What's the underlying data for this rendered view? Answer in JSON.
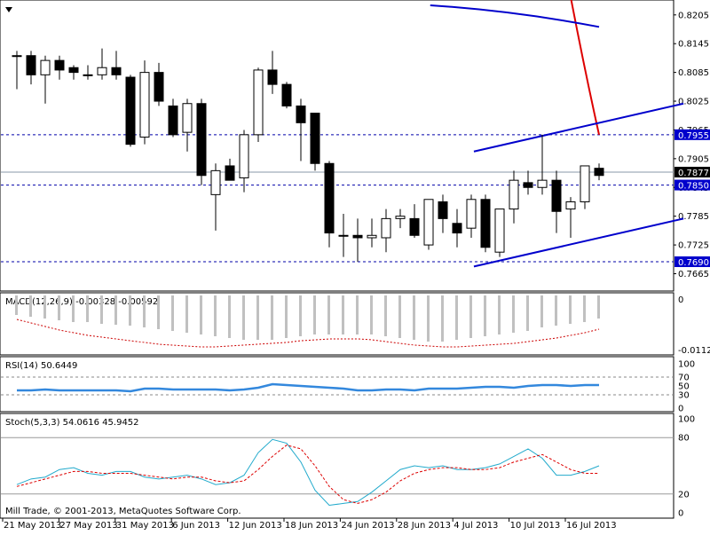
{
  "price_axis_labels": [
    "0.8205",
    "0.8145",
    "0.8085",
    "0.8025",
    "0.7965",
    "0.7905",
    "0.7845",
    "0.7785",
    "0.7725",
    "0.7665"
  ],
  "price_hlines": [
    {
      "label": "0.7955",
      "value": 0.7955
    },
    {
      "label": "0.7850",
      "value": 0.785
    },
    {
      "label": "0.7690",
      "value": 0.769
    }
  ],
  "current_price": {
    "label": "0.7877",
    "value": 0.7877
  },
  "macd": {
    "label": "MACD(12,26,9) -0.00328 -0.00592",
    "axis_top": "0",
    "axis_bottom": "-0.01128"
  },
  "rsi": {
    "label": "RSI(14) 50.6449",
    "levels": [
      "100",
      "70",
      "50",
      "30",
      "0"
    ]
  },
  "stoch": {
    "label": "Stoch(5,3,3) 54.0616 45.9452",
    "levels": [
      "100",
      "80",
      "20",
      "0"
    ]
  },
  "copyright": "Mill Trade, © 2001-2013, MetaQuotes Software Corp.",
  "x_labels": [
    "21 May 2013",
    "27 May 2013",
    "31 May 2013",
    "6 Jun 2013",
    "12 Jun 2013",
    "18 Jun 2013",
    "24 Jun 2013",
    "28 Jun 2013",
    "4 Jul 2013",
    "10 Jul 2013",
    "16 Jul 2013"
  ],
  "chart_data": {
    "type": "candlestick",
    "ylim": [
      0.764,
      0.8225
    ],
    "candles": [
      {
        "o": 0.812,
        "h": 0.813,
        "l": 0.805,
        "c": 0.812
      },
      {
        "o": 0.812,
        "h": 0.813,
        "l": 0.806,
        "c": 0.808
      },
      {
        "o": 0.808,
        "h": 0.812,
        "l": 0.802,
        "c": 0.811
      },
      {
        "o": 0.811,
        "h": 0.812,
        "l": 0.807,
        "c": 0.809
      },
      {
        "o": 0.8095,
        "h": 0.81,
        "l": 0.807,
        "c": 0.8085
      },
      {
        "o": 0.808,
        "h": 0.81,
        "l": 0.807,
        "c": 0.808
      },
      {
        "o": 0.808,
        "h": 0.8135,
        "l": 0.807,
        "c": 0.8095
      },
      {
        "o": 0.8095,
        "h": 0.813,
        "l": 0.807,
        "c": 0.808
      },
      {
        "o": 0.8075,
        "h": 0.808,
        "l": 0.793,
        "c": 0.7935
      },
      {
        "o": 0.795,
        "h": 0.811,
        "l": 0.7935,
        "c": 0.8085
      },
      {
        "o": 0.8085,
        "h": 0.8105,
        "l": 0.8015,
        "c": 0.8025
      },
      {
        "o": 0.8015,
        "h": 0.803,
        "l": 0.795,
        "c": 0.7955
      },
      {
        "o": 0.796,
        "h": 0.803,
        "l": 0.792,
        "c": 0.802
      },
      {
        "o": 0.802,
        "h": 0.803,
        "l": 0.785,
        "c": 0.787
      },
      {
        "o": 0.783,
        "h": 0.7895,
        "l": 0.7755,
        "c": 0.788
      },
      {
        "o": 0.789,
        "h": 0.7905,
        "l": 0.786,
        "c": 0.786
      },
      {
        "o": 0.7865,
        "h": 0.7965,
        "l": 0.7835,
        "c": 0.7955
      },
      {
        "o": 0.7955,
        "h": 0.8095,
        "l": 0.794,
        "c": 0.809
      },
      {
        "o": 0.809,
        "h": 0.813,
        "l": 0.804,
        "c": 0.806
      },
      {
        "o": 0.806,
        "h": 0.8065,
        "l": 0.801,
        "c": 0.8015
      },
      {
        "o": 0.8015,
        "h": 0.803,
        "l": 0.79,
        "c": 0.798
      },
      {
        "o": 0.8,
        "h": 0.8,
        "l": 0.788,
        "c": 0.7895
      },
      {
        "o": 0.7895,
        "h": 0.79,
        "l": 0.772,
        "c": 0.775
      },
      {
        "o": 0.7745,
        "h": 0.779,
        "l": 0.77,
        "c": 0.7745
      },
      {
        "o": 0.7745,
        "h": 0.778,
        "l": 0.769,
        "c": 0.774
      },
      {
        "o": 0.774,
        "h": 0.778,
        "l": 0.772,
        "c": 0.7745
      },
      {
        "o": 0.774,
        "h": 0.78,
        "l": 0.771,
        "c": 0.778
      },
      {
        "o": 0.778,
        "h": 0.78,
        "l": 0.776,
        "c": 0.7785
      },
      {
        "o": 0.778,
        "h": 0.781,
        "l": 0.774,
        "c": 0.7745
      },
      {
        "o": 0.7725,
        "h": 0.782,
        "l": 0.7715,
        "c": 0.782
      },
      {
        "o": 0.7815,
        "h": 0.783,
        "l": 0.775,
        "c": 0.778
      },
      {
        "o": 0.777,
        "h": 0.78,
        "l": 0.772,
        "c": 0.775
      },
      {
        "o": 0.776,
        "h": 0.783,
        "l": 0.774,
        "c": 0.782
      },
      {
        "o": 0.782,
        "h": 0.783,
        "l": 0.771,
        "c": 0.772
      },
      {
        "o": 0.771,
        "h": 0.78,
        "l": 0.77,
        "c": 0.78
      },
      {
        "o": 0.78,
        "h": 0.788,
        "l": 0.777,
        "c": 0.786
      },
      {
        "o": 0.7855,
        "h": 0.788,
        "l": 0.783,
        "c": 0.7845
      },
      {
        "o": 0.7845,
        "h": 0.7955,
        "l": 0.783,
        "c": 0.786
      },
      {
        "o": 0.786,
        "h": 0.788,
        "l": 0.775,
        "c": 0.7795
      },
      {
        "o": 0.78,
        "h": 0.7825,
        "l": 0.774,
        "c": 0.7815
      },
      {
        "o": 0.7815,
        "h": 0.789,
        "l": 0.78,
        "c": 0.789
      },
      {
        "o": 0.7885,
        "h": 0.7895,
        "l": 0.786,
        "c": 0.787
      }
    ],
    "ma_red": [
      [
        0.825,
        -0.05
      ],
      [
        0.7955,
        0
      ]
    ],
    "ma_blue": [
      [
        0.8225,
        -0.29
      ],
      [
        0.818,
        0
      ]
    ],
    "channel_upper": [
      [
        0.792,
        -0.215
      ],
      [
        0.802,
        0.145
      ]
    ],
    "channel_lower": [
      [
        0.768,
        -0.215
      ],
      [
        0.778,
        0.145
      ]
    ]
  }
}
